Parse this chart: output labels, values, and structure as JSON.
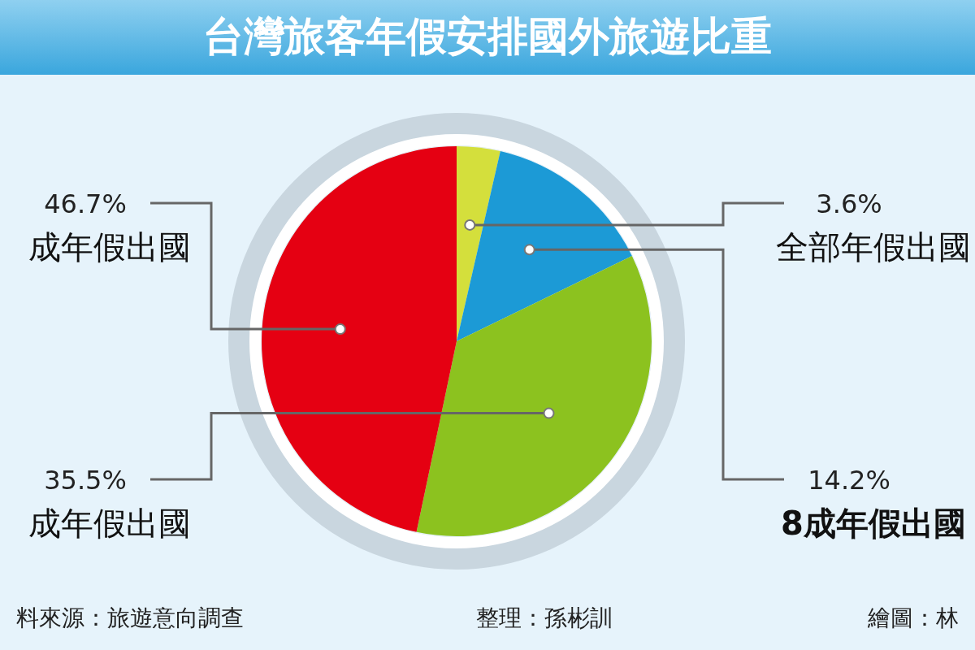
{
  "chart_data": {
    "type": "pie",
    "title": "台灣旅客年假安排國外旅遊比重",
    "categories": [
      "全部年假出國",
      "8成年假出國",
      "成年假出國",
      "成年假出國"
    ],
    "values": [
      3.6,
      14.2,
      35.5,
      46.7
    ],
    "colors": [
      "#d4df3c",
      "#1c9ad6",
      "#8cc21f",
      "#e50012"
    ],
    "value_labels": [
      "3.6%",
      "14.2%",
      "35.5%",
      "46.7%"
    ],
    "annotations": [
      "料來源：旅遊意向調查",
      "整理：孫彬訓",
      "繪圖：林"
    ]
  }
}
